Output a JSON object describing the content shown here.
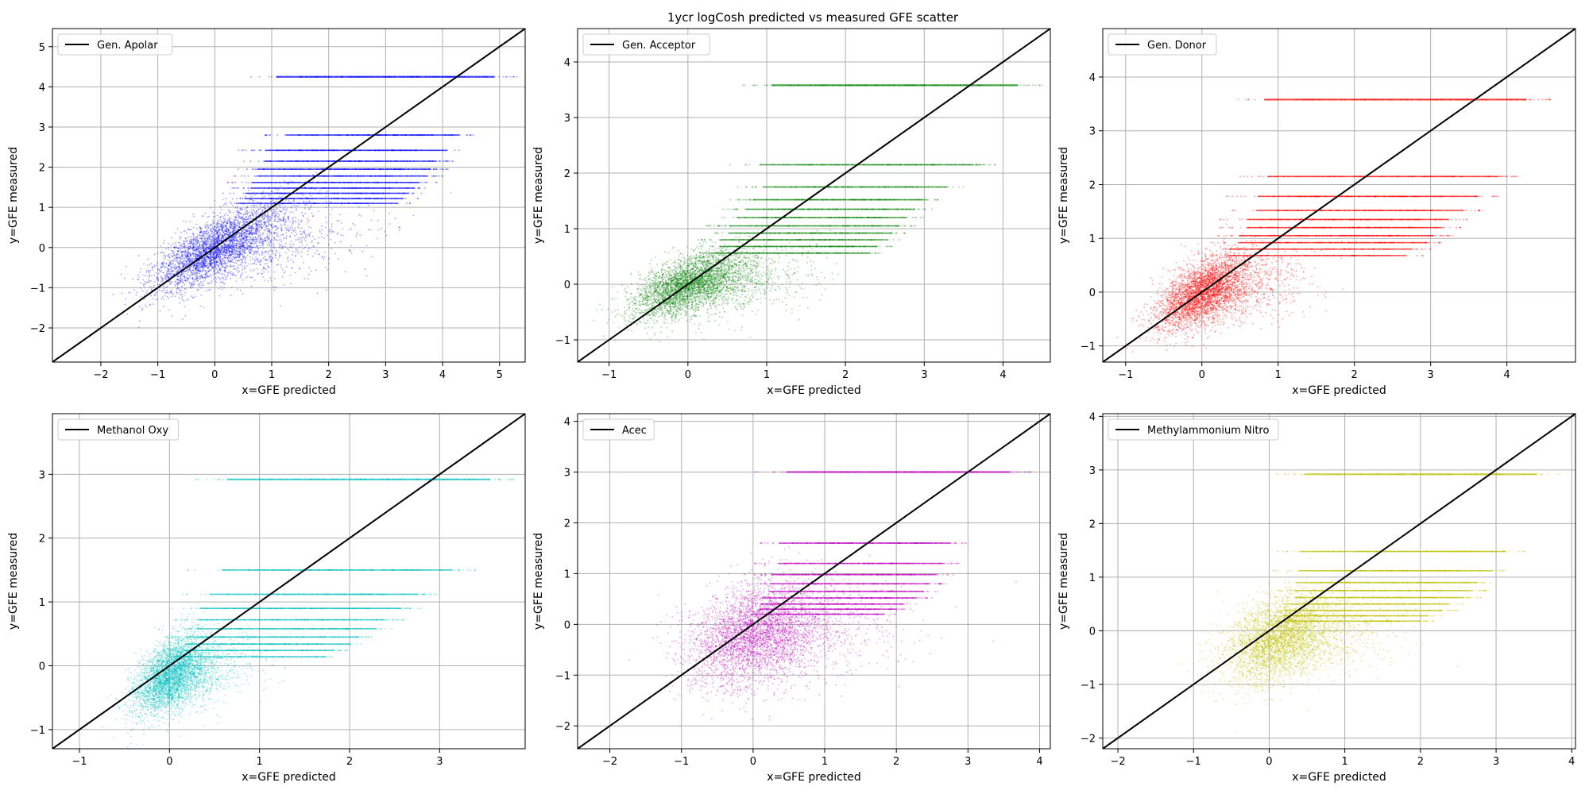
{
  "figure": {
    "title": "1ycr logCosh predicted vs measured GFE scatter"
  },
  "chart_data": [
    {
      "type": "scatter",
      "legend": "Gen. Apolar",
      "legend_loc": "upper-left",
      "color": "#0000ff",
      "xlabel": "x=GFE predicted",
      "ylabel": "y=GFE measured",
      "xlim": [
        -2.85,
        5.45
      ],
      "ylim": [
        -2.85,
        5.45
      ],
      "xticks": [
        -2,
        -1,
        0,
        1,
        2,
        3,
        4,
        5
      ],
      "yticks": [
        -2,
        -1,
        0,
        1,
        2,
        3,
        4,
        5
      ],
      "grid": true,
      "reference_line": "y=x",
      "cluster_center": [
        0.0,
        0.0
      ],
      "cluster_spread": [
        0.55,
        0.55
      ],
      "cluster_correlation": 0.75,
      "measured_levels": [
        {
          "y": 4.25,
          "x_range": [
            0.5,
            5.3
          ]
        },
        {
          "y": 2.8,
          "x_range": [
            0.8,
            4.6
          ]
        },
        {
          "y": 2.42,
          "x_range": [
            0.4,
            4.4
          ]
        },
        {
          "y": 2.15,
          "x_range": [
            0.4,
            4.2
          ]
        },
        {
          "y": 1.95,
          "x_range": [
            0.3,
            4.1
          ]
        },
        {
          "y": 1.78,
          "x_range": [
            0.3,
            4.0
          ]
        },
        {
          "y": 1.62,
          "x_range": [
            0.2,
            3.9
          ]
        },
        {
          "y": 1.48,
          "x_range": [
            0.2,
            3.8
          ]
        },
        {
          "y": 1.35,
          "x_range": [
            0.1,
            3.7
          ]
        },
        {
          "y": 1.22,
          "x_range": [
            0.1,
            3.6
          ]
        },
        {
          "y": 1.1,
          "x_range": [
            0.0,
            3.5
          ]
        }
      ]
    },
    {
      "type": "scatter",
      "legend": "Gen. Acceptor",
      "legend_loc": "upper-left",
      "color": "#008000",
      "xlabel": "x=GFE predicted",
      "ylabel": "y=GFE measured",
      "xlim": [
        -1.4,
        4.6
      ],
      "ylim": [
        -1.4,
        4.6
      ],
      "xticks": [
        -1,
        0,
        1,
        2,
        3,
        4
      ],
      "yticks": [
        -1,
        0,
        1,
        2,
        3,
        4
      ],
      "grid": true,
      "reference_line": "y=x",
      "cluster_center": [
        0.0,
        0.0
      ],
      "cluster_spread": [
        0.35,
        0.3
      ],
      "cluster_correlation": 0.6,
      "measured_levels": [
        {
          "y": 3.58,
          "x_range": [
            0.6,
            4.5
          ]
        },
        {
          "y": 2.15,
          "x_range": [
            0.5,
            3.9
          ]
        },
        {
          "y": 1.75,
          "x_range": [
            0.6,
            3.5
          ]
        },
        {
          "y": 1.52,
          "x_range": [
            0.5,
            3.2
          ]
        },
        {
          "y": 1.35,
          "x_range": [
            0.4,
            3.1
          ]
        },
        {
          "y": 1.2,
          "x_range": [
            0.3,
            3.0
          ]
        },
        {
          "y": 1.05,
          "x_range": [
            0.2,
            2.9
          ]
        },
        {
          "y": 0.92,
          "x_range": [
            0.2,
            2.8
          ]
        },
        {
          "y": 0.8,
          "x_range": [
            0.1,
            2.7
          ]
        },
        {
          "y": 0.68,
          "x_range": [
            0.1,
            2.6
          ]
        },
        {
          "y": 0.56,
          "x_range": [
            0.0,
            2.5
          ]
        }
      ]
    },
    {
      "type": "scatter",
      "legend": "Gen. Donor",
      "legend_loc": "upper-left",
      "color": "#ff0000",
      "xlabel": "x=GFE predicted",
      "ylabel": "y=GFE measured",
      "xlim": [
        -1.3,
        4.9
      ],
      "ylim": [
        -1.3,
        4.9
      ],
      "xticks": [
        -1,
        0,
        1,
        2,
        3,
        4
      ],
      "yticks": [
        -1,
        0,
        1,
        2,
        3,
        4
      ],
      "grid": true,
      "reference_line": "y=x",
      "cluster_center": [
        0.0,
        0.0
      ],
      "cluster_spread": [
        0.3,
        0.35
      ],
      "cluster_correlation": 0.6,
      "measured_levels": [
        {
          "y": 3.58,
          "x_range": [
            0.3,
            4.6
          ]
        },
        {
          "y": 2.15,
          "x_range": [
            0.4,
            4.2
          ]
        },
        {
          "y": 1.78,
          "x_range": [
            0.3,
            3.9
          ]
        },
        {
          "y": 1.52,
          "x_range": [
            0.3,
            3.7
          ]
        },
        {
          "y": 1.35,
          "x_range": [
            0.2,
            3.5
          ]
        },
        {
          "y": 1.2,
          "x_range": [
            0.2,
            3.4
          ]
        },
        {
          "y": 1.05,
          "x_range": [
            0.1,
            3.3
          ]
        },
        {
          "y": 0.92,
          "x_range": [
            0.1,
            3.2
          ]
        },
        {
          "y": 0.8,
          "x_range": [
            0.0,
            3.0
          ]
        },
        {
          "y": 0.68,
          "x_range": [
            0.0,
            2.9
          ]
        }
      ]
    },
    {
      "type": "scatter",
      "legend": "Methanol Oxy",
      "legend_loc": "upper-left",
      "color": "#00bfbf",
      "xlabel": "x=GFE predicted",
      "ylabel": "y=GFE measured",
      "xlim": [
        -1.3,
        3.95
      ],
      "ylim": [
        -1.3,
        3.95
      ],
      "xticks": [
        -1,
        0,
        1,
        2,
        3
      ],
      "yticks": [
        -1,
        0,
        1,
        2,
        3
      ],
      "grid": true,
      "reference_line": "y=x",
      "cluster_center": [
        0.0,
        -0.15
      ],
      "cluster_spread": [
        0.2,
        0.3
      ],
      "cluster_correlation": 0.5,
      "measured_levels": [
        {
          "y": 2.92,
          "x_range": [
            0.2,
            3.85
          ]
        },
        {
          "y": 1.5,
          "x_range": [
            0.2,
            3.4
          ]
        },
        {
          "y": 1.12,
          "x_range": [
            0.1,
            3.0
          ]
        },
        {
          "y": 0.9,
          "x_range": [
            0.0,
            2.8
          ]
        },
        {
          "y": 0.72,
          "x_range": [
            0.0,
            2.6
          ]
        },
        {
          "y": 0.58,
          "x_range": [
            0.0,
            2.5
          ]
        },
        {
          "y": 0.45,
          "x_range": [
            -0.1,
            2.3
          ]
        },
        {
          "y": 0.34,
          "x_range": [
            -0.1,
            2.2
          ]
        },
        {
          "y": 0.24,
          "x_range": [
            -0.1,
            2.0
          ]
        },
        {
          "y": 0.14,
          "x_range": [
            -0.2,
            1.9
          ]
        }
      ]
    },
    {
      "type": "scatter",
      "legend": "Acec",
      "legend_loc": "upper-left",
      "color": "#bf00bf",
      "xlabel": "x=GFE predicted",
      "ylabel": "y=GFE measured",
      "xlim": [
        -2.45,
        4.15
      ],
      "ylim": [
        -2.45,
        4.15
      ],
      "xticks": [
        -2,
        -1,
        0,
        1,
        2,
        3,
        4
      ],
      "yticks": [
        -2,
        -1,
        0,
        1,
        2,
        3,
        4
      ],
      "grid": true,
      "reference_line": "y=x",
      "cluster_center": [
        0.0,
        -0.2
      ],
      "cluster_spread": [
        0.45,
        0.5
      ],
      "cluster_correlation": 0.3,
      "measured_levels": [
        {
          "y": 3.0,
          "x_range": [
            0.0,
            3.9
          ]
        },
        {
          "y": 1.6,
          "x_range": [
            0.0,
            3.0
          ]
        },
        {
          "y": 1.2,
          "x_range": [
            0.0,
            2.9
          ]
        },
        {
          "y": 0.98,
          "x_range": [
            -0.1,
            2.8
          ]
        },
        {
          "y": 0.8,
          "x_range": [
            -0.1,
            2.7
          ]
        },
        {
          "y": 0.65,
          "x_range": [
            -0.1,
            2.6
          ]
        },
        {
          "y": 0.52,
          "x_range": [
            -0.2,
            2.5
          ]
        },
        {
          "y": 0.4,
          "x_range": [
            -0.2,
            2.3
          ]
        },
        {
          "y": 0.3,
          "x_range": [
            -0.2,
            2.2
          ]
        },
        {
          "y": 0.2,
          "x_range": [
            -0.3,
            2.0
          ]
        }
      ]
    },
    {
      "type": "scatter",
      "legend": "Methylammonium Nitro",
      "legend_loc": "upper-left",
      "color": "#bfbf00",
      "xlabel": "x=GFE predicted",
      "ylabel": "y=GFE measured",
      "xlim": [
        -2.2,
        4.05
      ],
      "ylim": [
        -2.2,
        4.05
      ],
      "xticks": [
        -2,
        -1,
        0,
        1,
        2,
        3,
        4
      ],
      "yticks": [
        -2,
        -1,
        0,
        1,
        2,
        3,
        4
      ],
      "grid": true,
      "reference_line": "y=x",
      "cluster_center": [
        0.1,
        -0.15
      ],
      "cluster_spread": [
        0.35,
        0.4
      ],
      "cluster_correlation": 0.4,
      "measured_levels": [
        {
          "y": 2.92,
          "x_range": [
            0.0,
            3.85
          ]
        },
        {
          "y": 1.48,
          "x_range": [
            0.0,
            3.4
          ]
        },
        {
          "y": 1.12,
          "x_range": [
            0.0,
            3.2
          ]
        },
        {
          "y": 0.9,
          "x_range": [
            0.0,
            3.0
          ]
        },
        {
          "y": 0.75,
          "x_range": [
            0.0,
            2.9
          ]
        },
        {
          "y": 0.62,
          "x_range": [
            0.0,
            2.8
          ]
        },
        {
          "y": 0.5,
          "x_range": [
            -0.1,
            2.6
          ]
        },
        {
          "y": 0.38,
          "x_range": [
            -0.1,
            2.5
          ]
        },
        {
          "y": 0.28,
          "x_range": [
            -0.1,
            2.3
          ]
        },
        {
          "y": 0.18,
          "x_range": [
            -0.2,
            2.2
          ]
        }
      ]
    }
  ]
}
